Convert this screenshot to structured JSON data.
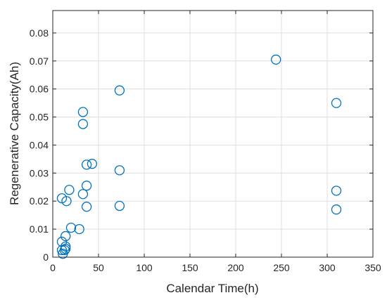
{
  "chart_data": {
    "type": "scatter",
    "xlabel": "Calendar Time(h)",
    "ylabel": "Regenerative Capacity(Ah)",
    "xlim": [
      0,
      350
    ],
    "ylim": [
      0,
      0.088
    ],
    "xticks": [
      0,
      50,
      100,
      150,
      200,
      250,
      300,
      350
    ],
    "yticks": [
      0,
      0.01,
      0.02,
      0.03,
      0.04,
      0.05,
      0.06,
      0.07,
      0.08
    ],
    "xtick_labels": [
      "0",
      "50",
      "100",
      "150",
      "200",
      "250",
      "300",
      "350"
    ],
    "ytick_labels": [
      "0",
      "0.01",
      "0.02",
      "0.03",
      "0.04",
      "0.05",
      "0.06",
      "0.07",
      "0.08"
    ],
    "grid": true,
    "marker": "open-circle",
    "marker_color": "#0072BD",
    "points": [
      {
        "x": 10,
        "y": 0.021
      },
      {
        "x": 15,
        "y": 0.02
      },
      {
        "x": 18,
        "y": 0.024
      },
      {
        "x": 10,
        "y": 0.0055
      },
      {
        "x": 10,
        "y": 0.0025
      },
      {
        "x": 11,
        "y": 0.0012
      },
      {
        "x": 13,
        "y": 0.0025
      },
      {
        "x": 14,
        "y": 0.003
      },
      {
        "x": 14,
        "y": 0.0038
      },
      {
        "x": 14,
        "y": 0.0075
      },
      {
        "x": 20,
        "y": 0.0105
      },
      {
        "x": 29,
        "y": 0.01
      },
      {
        "x": 33,
        "y": 0.0518
      },
      {
        "x": 33,
        "y": 0.0475
      },
      {
        "x": 33,
        "y": 0.0225
      },
      {
        "x": 37,
        "y": 0.033
      },
      {
        "x": 37,
        "y": 0.0255
      },
      {
        "x": 37,
        "y": 0.018
      },
      {
        "x": 43,
        "y": 0.0333
      },
      {
        "x": 73,
        "y": 0.0595
      },
      {
        "x": 73,
        "y": 0.031
      },
      {
        "x": 73,
        "y": 0.0183
      },
      {
        "x": 244,
        "y": 0.0705
      },
      {
        "x": 310,
        "y": 0.055
      },
      {
        "x": 310,
        "y": 0.0237
      },
      {
        "x": 310,
        "y": 0.017
      }
    ]
  }
}
